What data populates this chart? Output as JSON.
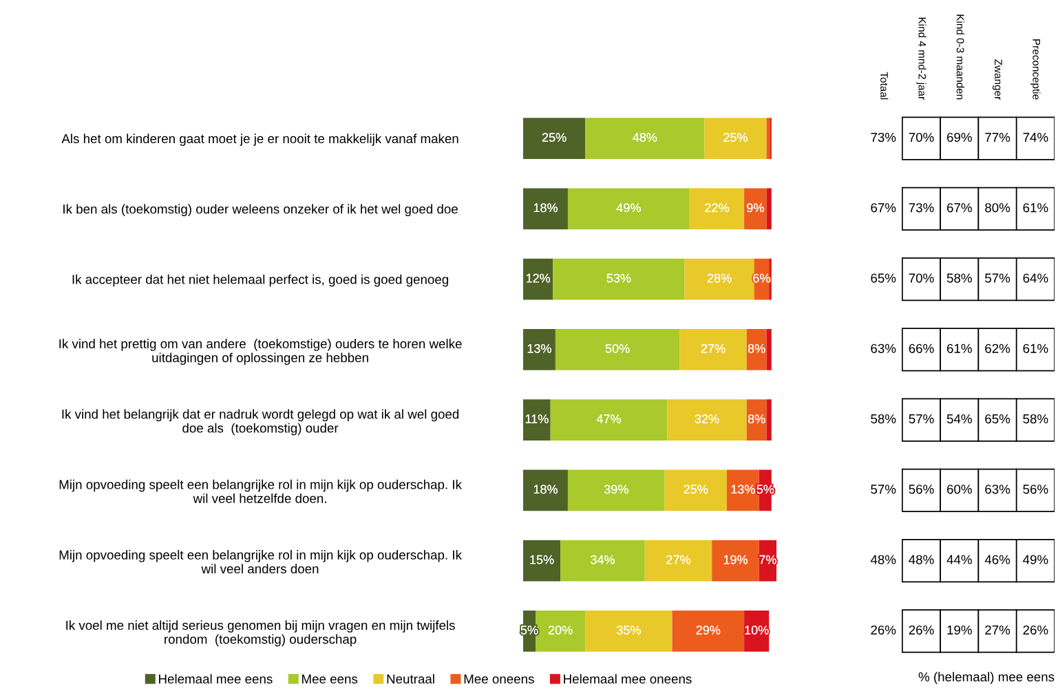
{
  "chart_data": [
    {
      "type": "bar",
      "orientation": "horizontal",
      "stacked": true,
      "xlim": [
        0,
        102
      ],
      "tick_labels": false,
      "legend": "bottom",
      "grid": false,
      "categories": [
        "Als het om kinderen gaat moet je je er nooit te makkelijk vanaf maken",
        "Ik ben als (toekomstig) ouder weleens onzeker of ik het wel goed doe",
        "Ik accepteer dat het niet helemaal perfect is, goed is goed genoeg",
        "Ik vind het prettig om van andere  (toekomstige) ouders te horen welke\nuitdagingen of oplossingen ze hebben",
        "Ik vind het belangrijk dat er nadruk wordt gelegd op wat ik al wel goed\ndoe als  (toekomstig) ouder",
        "Mijn opvoeding speelt een belangrijke rol in mijn kijk op ouderschap. Ik\nwil veel hetzelfde doen.",
        "Mijn opvoeding speelt een belangrijke rol in mijn kijk op ouderschap. Ik\nwil veel anders doen",
        "Ik voel me niet altijd serieus genomen bij mijn vragen en mijn twijfels\nrondom  (toekomstig) ouderschap"
      ],
      "series": [
        {
          "name": "Helemaal mee eens",
          "color": "#4f6228",
          "values": [
            25,
            18,
            12,
            13,
            11,
            18,
            15,
            5
          ],
          "value_labels": [
            "25%",
            "18%",
            "12%",
            "13%",
            "11%",
            "18%",
            "15%",
            "5%"
          ]
        },
        {
          "name": "Mee eens",
          "color": "#a9c92c",
          "values": [
            48,
            49,
            53,
            50,
            47,
            39,
            34,
            20
          ],
          "value_labels": [
            "48%",
            "49%",
            "53%",
            "50%",
            "47%",
            "39%",
            "34%",
            "20%"
          ]
        },
        {
          "name": "Neutraal",
          "color": "#e9c829",
          "values": [
            25,
            22,
            28,
            27,
            32,
            25,
            27,
            35
          ],
          "value_labels": [
            "25%",
            "22%",
            "28%",
            "27%",
            "32%",
            "25%",
            "27%",
            "35%"
          ]
        },
        {
          "name": "Mee oneens",
          "color": "#ec5d1d",
          "values": [
            1.5,
            9,
            6,
            8,
            8,
            13,
            19,
            29
          ],
          "value_labels": [
            null,
            "9%",
            "6%",
            "8%",
            "8%",
            "13%",
            "19%",
            "29%"
          ]
        },
        {
          "name": "Helemaal mee oneens",
          "color": "#d9141e",
          "values": [
            0.5,
            2,
            1,
            2,
            2,
            5,
            7,
            10
          ],
          "value_labels": [
            null,
            null,
            null,
            null,
            null,
            "5%",
            "7%",
            "10%"
          ]
        }
      ]
    },
    {
      "type": "other",
      "xlabel": "% (helemaal) mee eens",
      "categories": [
        "Totaal",
        "Kind 4 mnd-2 jaar",
        "Kind 0-3 maanden",
        "Zwanger",
        "Preconceptie"
      ],
      "cell_labels": [
        [
          "73%",
          "70%",
          "69%",
          "77%",
          "74%"
        ],
        [
          "67%",
          "73%",
          "67%",
          "80%",
          "61%"
        ],
        [
          "65%",
          "70%",
          "58%",
          "57%",
          "64%"
        ],
        [
          "63%",
          "66%",
          "61%",
          "62%",
          "61%"
        ],
        [
          "58%",
          "57%",
          "54%",
          "65%",
          "58%"
        ],
        [
          "57%",
          "56%",
          "60%",
          "63%",
          "56%"
        ],
        [
          "48%",
          "48%",
          "44%",
          "46%",
          "49%"
        ],
        [
          "26%",
          "26%",
          "19%",
          "27%",
          "26%"
        ]
      ]
    }
  ]
}
